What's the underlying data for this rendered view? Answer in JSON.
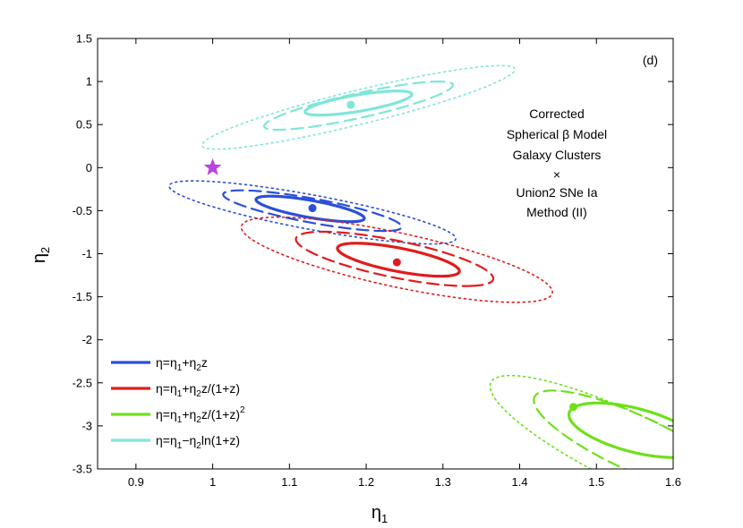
{
  "chart_data": {
    "type": "contour",
    "panel_label": "(d)",
    "xlabel": "η",
    "xlabel_sub": "1",
    "ylabel": "η",
    "ylabel_sub": "2",
    "xlim": [
      0.85,
      1.6
    ],
    "ylim": [
      -3.5,
      1.5
    ],
    "xticks": [
      0.9,
      1.0,
      1.1,
      1.2,
      1.3,
      1.4,
      1.5,
      1.6
    ],
    "xtick_labels": [
      "0.9",
      "1",
      "1.1",
      "1.2",
      "1.3",
      "1.4",
      "1.5",
      "1.6"
    ],
    "yticks": [
      1.5,
      1.0,
      0.5,
      0.0,
      -0.5,
      -1.0,
      -1.5,
      -2.0,
      -2.5,
      -3.0,
      -3.5
    ],
    "ytick_labels": [
      "1.5",
      "1",
      "0.5",
      "0",
      "-0.5",
      "-1",
      "-1.5",
      "-2",
      "-2.5",
      "-3",
      "-3.5"
    ],
    "annotation_lines": [
      "Corrected",
      "Spherical β Model",
      "Galaxy Clusters",
      "×",
      "Union2 SNe Ia",
      "Method (II)"
    ],
    "reference_point": {
      "x": 1.0,
      "y": 0.0,
      "color": "#bb44dd",
      "marker": "star"
    },
    "contour_levels": [
      "1σ (solid)",
      "2σ (dashed)",
      "3σ (dotted)"
    ],
    "series": [
      {
        "name": "blue",
        "legend": "η=η1+η2z",
        "legend_parts": [
          [
            "η=η",
            ""
          ],
          [
            "1",
            "sub"
          ],
          [
            "+η",
            ""
          ],
          [
            "2",
            "sub"
          ],
          [
            "z",
            ""
          ]
        ],
        "color": "#2b4fd8",
        "best_fit": {
          "x": 1.13,
          "y": -0.47
        },
        "ellipses": [
          {
            "cx": 1.127,
            "cy": -0.48,
            "a": 0.158,
            "b": 0.045,
            "slope": -2.6
          },
          {
            "cx": 1.13,
            "cy": -0.5,
            "a": 0.255,
            "b": 0.065,
            "slope": -2.35
          },
          {
            "cx": 1.13,
            "cy": -0.52,
            "a": 0.4,
            "b": 0.095,
            "slope": -2.2
          }
        ]
      },
      {
        "name": "red",
        "legend": "η=η1+η2z/(1+z)",
        "legend_parts": [
          [
            "η=η",
            ""
          ],
          [
            "1",
            "sub"
          ],
          [
            "+η",
            ""
          ],
          [
            "2",
            "sub"
          ],
          [
            "z/(1+z)",
            ""
          ]
        ],
        "color": "#e01c1c",
        "best_fit": {
          "x": 1.24,
          "y": -1.1
        },
        "ellipses": [
          {
            "cx": 1.242,
            "cy": -1.07,
            "a": 0.2,
            "b": 0.055,
            "slope": -3.2
          },
          {
            "cx": 1.237,
            "cy": -1.06,
            "a": 0.33,
            "b": 0.085,
            "slope": -3.15
          },
          {
            "cx": 1.24,
            "cy": -1.07,
            "a": 0.52,
            "b": 0.125,
            "slope": -3.0
          }
        ]
      },
      {
        "name": "green",
        "legend": "η=η1+η2z/(1+z)^2",
        "legend_parts": [
          [
            "η=η",
            ""
          ],
          [
            "1",
            "sub"
          ],
          [
            "+η",
            ""
          ],
          [
            "2",
            "sub"
          ],
          [
            "z/(1+z)",
            ""
          ],
          [
            "2",
            "sup"
          ]
        ],
        "color": "#6ee01c",
        "best_fit": {
          "x": 1.47,
          "y": -2.78
        },
        "ellipses": [
          {
            "cx": 1.55,
            "cy": -3.05,
            "a": 0.32,
            "b": 0.07,
            "slope": -6.2
          },
          {
            "cx": 1.55,
            "cy": -3.2,
            "a": 0.62,
            "b": 0.075,
            "slope": -5.6
          },
          {
            "cx": 1.55,
            "cy": -3.3,
            "a": 0.9,
            "b": 0.095,
            "slope": -5.4
          }
        ]
      },
      {
        "name": "cyan",
        "legend": "η=η1−η2ln(1+z)",
        "legend_parts": [
          [
            "η=η",
            ""
          ],
          [
            "1",
            "sub"
          ],
          [
            "−η",
            ""
          ],
          [
            "2",
            "sub"
          ],
          [
            "ln(1+z)",
            ""
          ]
        ],
        "color": "#7fe6d8",
        "best_fit": {
          "x": 1.18,
          "y": 0.73
        },
        "ellipses": [
          {
            "cx": 1.19,
            "cy": 0.75,
            "a": 0.15,
            "b": 0.045,
            "slope": 2.5
          },
          {
            "cx": 1.19,
            "cy": 0.72,
            "a": 0.3,
            "b": 0.06,
            "slope": 2.55
          },
          {
            "cx": 1.19,
            "cy": 0.7,
            "a": 0.52,
            "b": 0.08,
            "slope": 2.55
          }
        ]
      }
    ]
  }
}
